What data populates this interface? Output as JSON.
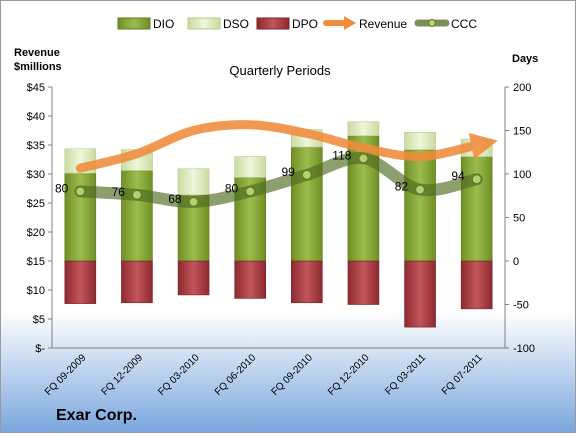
{
  "chart_data": {
    "type": "bar",
    "title": "Quarterly Periods",
    "company": "Exar Corp.",
    "left_axis_label": "Revenue\n$millions",
    "right_axis_label": "Days",
    "categories": [
      "FQ 09-2009",
      "FQ 12-2009",
      "FQ 03-2010",
      "FQ 06-2010",
      "FQ 09-2010",
      "FQ 12-2010",
      "FQ 03-2011",
      "FQ 07-2011"
    ],
    "left_ticks": [
      "$-",
      "$5",
      "$10",
      "$15",
      "$20",
      "$25",
      "$30",
      "$35",
      "$40",
      "$45"
    ],
    "right_ticks": [
      "-100",
      "-50",
      "0",
      "50",
      "100",
      "150",
      "200"
    ],
    "left_ylim": [
      0,
      45
    ],
    "right_ylim": [
      -100,
      200
    ],
    "legend_placement": "top",
    "series": [
      {
        "name": "DIO",
        "axis": "days",
        "values": [
          101,
          104,
          76,
          96,
          131,
          144,
          128,
          120
        ],
        "color": "#7a9a2e"
      },
      {
        "name": "DSO",
        "axis": "days",
        "values": [
          28,
          24,
          30,
          24,
          20,
          16,
          20,
          20
        ],
        "color": "#dce9b4"
      },
      {
        "name": "DPO",
        "axis": "days",
        "values": [
          -49,
          -48,
          -39,
          -43,
          -48,
          -50,
          -76,
          -55
        ],
        "color": "#a8343a"
      },
      {
        "name": "Revenue",
        "axis": "revenue",
        "values": [
          31.0,
          33.5,
          37.5,
          38.5,
          37.0,
          34.5,
          33.0,
          35.0
        ],
        "color": "#f08c3c"
      },
      {
        "name": "CCC",
        "axis": "days",
        "values": [
          80,
          76,
          68,
          80,
          99,
          118,
          82,
          94
        ],
        "color": "#5a7a2a"
      }
    ],
    "ccc_labels": [
      "80",
      "76",
      "68",
      "80",
      "99",
      "118",
      "82",
      "94"
    ]
  }
}
